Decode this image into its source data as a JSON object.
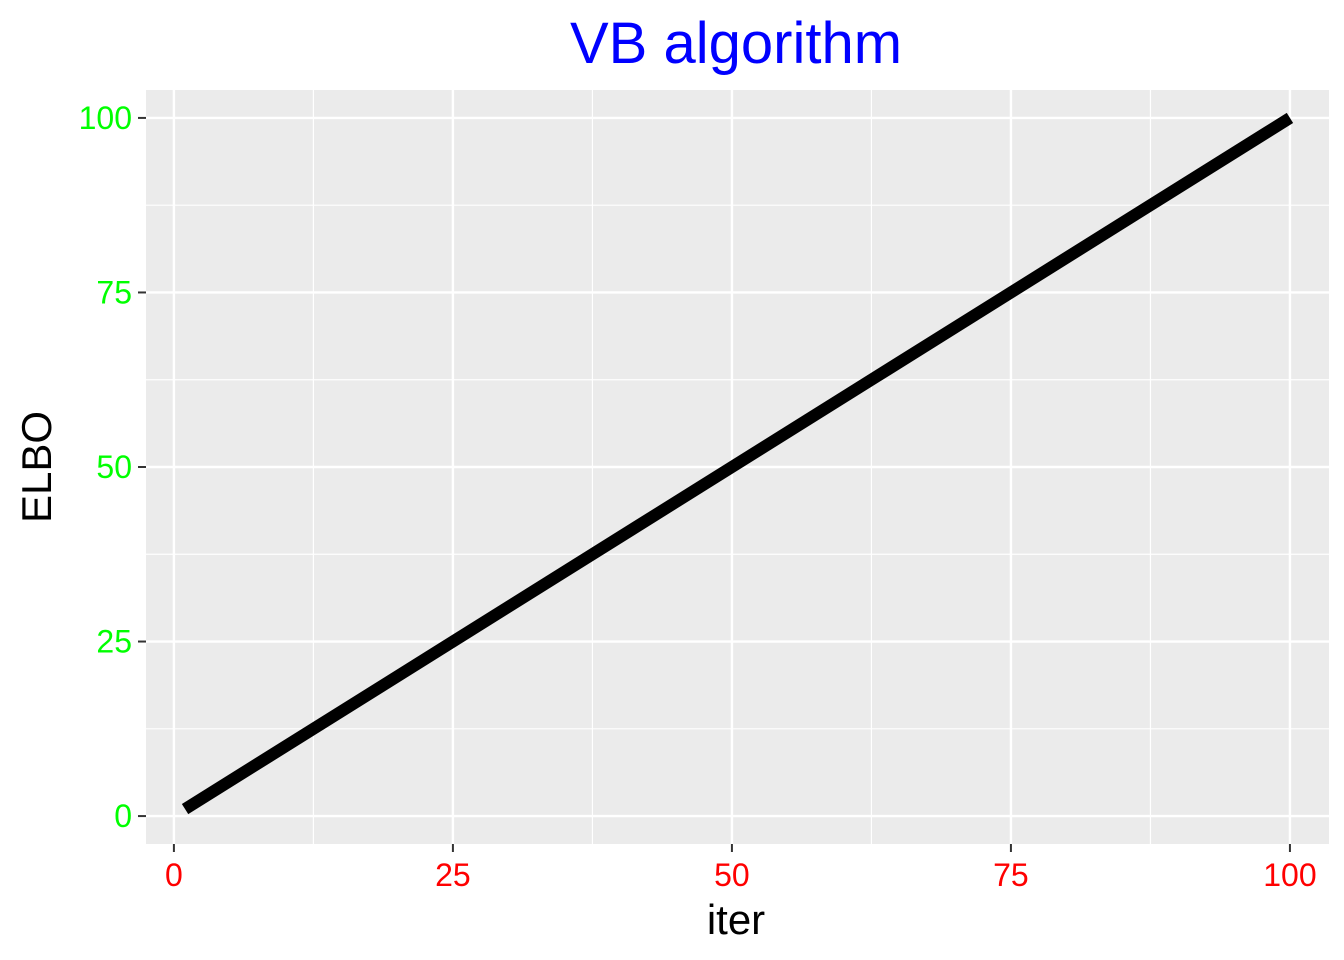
{
  "chart_data": {
    "type": "line",
    "title": "VB algorithm",
    "xlabel": "iter",
    "ylabel": "ELBO",
    "xlim": [
      -2.5,
      103.5
    ],
    "ylim": [
      -4,
      104
    ],
    "x_ticks": [
      0,
      25,
      50,
      75,
      100
    ],
    "x_tick_labels": [
      "0",
      "25",
      "50",
      "75",
      "100"
    ],
    "y_ticks": [
      0,
      25,
      50,
      75,
      100
    ],
    "y_tick_labels": [
      "0",
      "25",
      "50",
      "75",
      "100"
    ],
    "x_minor_ticks": [
      12.5,
      37.5,
      62.5,
      87.5
    ],
    "y_minor_ticks": [
      12.5,
      37.5,
      62.5,
      87.5
    ],
    "grid": true,
    "legend": "none",
    "series": [
      {
        "name": "ELBO",
        "x": [
          1,
          100
        ],
        "y": [
          1,
          100
        ],
        "color": "#000000"
      }
    ],
    "colors": {
      "title": "#0000ff",
      "x_tick_labels": "#ff0000",
      "y_tick_labels": "#00ff00",
      "panel_background": "#ebebeb",
      "grid_line": "#ffffff",
      "axis_tick": "#333333"
    }
  }
}
